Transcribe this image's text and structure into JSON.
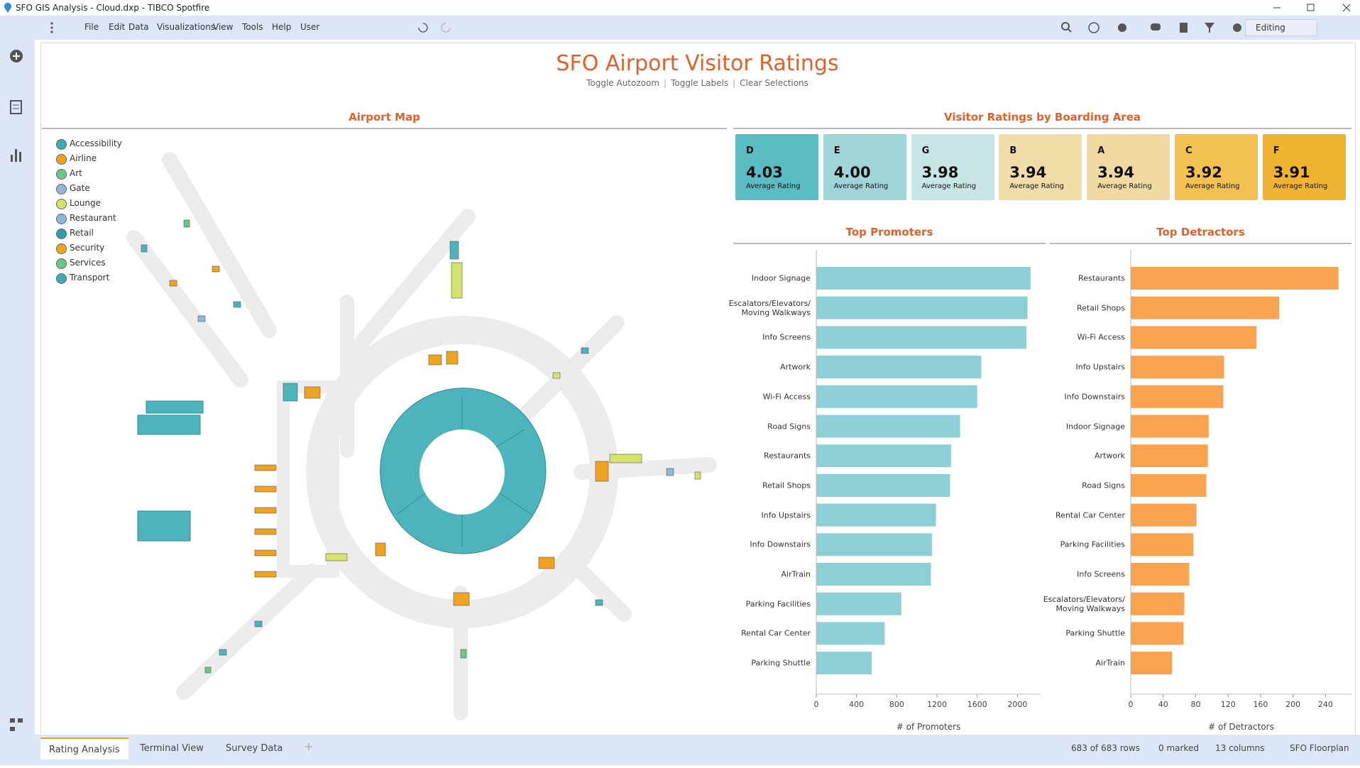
{
  "window": {
    "title": "SFO GIS Analysis - Cloud.dxp - TIBCO Spotfire"
  },
  "menu": [
    "File",
    "Edit",
    "Data",
    "Visualizations",
    "View",
    "Tools",
    "Help",
    "User"
  ],
  "mode": "Editing",
  "dashboard": {
    "title": "SFO Airport Visitor Ratings",
    "links": [
      "Toggle Autozoom",
      "Toggle Labels",
      "Clear Selections"
    ]
  },
  "map": {
    "title": "Airport Map",
    "legend": [
      {
        "name": "Accessibility",
        "color": "#3eaab3"
      },
      {
        "name": "Airline",
        "color": "#f0a31f"
      },
      {
        "name": "Art",
        "color": "#6cc58a"
      },
      {
        "name": "Gate",
        "color": "#8fb8d6"
      },
      {
        "name": "Lounge",
        "color": "#d6e36a"
      },
      {
        "name": "Restaurant",
        "color": "#8fb8d6"
      },
      {
        "name": "Retail",
        "color": "#2f9ea8"
      },
      {
        "name": "Security",
        "color": "#f0a31f"
      },
      {
        "name": "Services",
        "color": "#6cc58a"
      },
      {
        "name": "Transport",
        "color": "#3eaab3"
      }
    ]
  },
  "ratings": {
    "title": "Visitor Ratings by Boarding Area",
    "cards": [
      {
        "area": "D",
        "value": 4.03,
        "label": "Average Rating",
        "color": "#5bbcc4"
      },
      {
        "area": "E",
        "value": 4.0,
        "value_label": "4.00",
        "label": "Average Rating",
        "color": "#9fd5d7"
      },
      {
        "area": "G",
        "value": 3.98,
        "label": "Average Rating",
        "color": "#c9e6e6"
      },
      {
        "area": "B",
        "value": 3.94,
        "label": "Average Rating",
        "color": "#f2dca8"
      },
      {
        "area": "A",
        "value": 3.94,
        "label": "Average Rating",
        "color": "#f1d9a2"
      },
      {
        "area": "C",
        "value": 3.92,
        "label": "Average Rating",
        "color": "#f2c150"
      },
      {
        "area": "F",
        "value": 3.91,
        "label": "Average Rating",
        "color": "#f1b431"
      }
    ]
  },
  "chart_data": [
    {
      "type": "bar",
      "orientation": "horizontal",
      "title": "Top Promoters",
      "x_label": "# of Promoters",
      "color": "#8dcfd6",
      "categories": [
        "Indoor Signage",
        "Escalators/Elevators/ Moving Walkways",
        "Info Screens",
        "Artwork",
        "Wi-Fi Access",
        "Road Signs",
        "Restaurants",
        "Retail Shops",
        "Info Upstairs",
        "Info Downstairs",
        "AirTrain",
        "Parking Facilities",
        "Rental Car Center",
        "Parking Shuttle"
      ],
      "values": [
        2130,
        2100,
        2090,
        1640,
        1600,
        1430,
        1340,
        1330,
        1190,
        1150,
        1140,
        845,
        680,
        550
      ],
      "xlim": [
        0,
        2230
      ],
      "xticks": [
        0,
        400,
        800,
        1200,
        1600,
        2000
      ]
    },
    {
      "type": "bar",
      "orientation": "horizontal",
      "title": "Top Detractors",
      "x_label": "# of Detractors",
      "color": "#f9a350",
      "categories": [
        "Restaurants",
        "Retail Shops",
        "Wi-Fi Access",
        "Info Upstairs",
        "Info Downstairs",
        "Indoor Signage",
        "Artwork",
        "Road Signs",
        "Rental Car Center",
        "Parking Facilities",
        "Info Screens",
        "Escalators/Elevators/ Moving Walkways",
        "Parking Shuttle",
        "AirTrain"
      ],
      "values": [
        256,
        183,
        155,
        115,
        114,
        96,
        95,
        93,
        81,
        77,
        72,
        66,
        65,
        51
      ],
      "xlim": [
        0,
        272
      ],
      "xticks": [
        0,
        40,
        80,
        120,
        160,
        200,
        240
      ]
    }
  ],
  "tabs": [
    "Rating Analysis",
    "Terminal View",
    "Survey Data"
  ],
  "status": [
    "683 of 683 rows",
    "0 marked",
    "13 columns",
    "SFO Floorplan"
  ]
}
